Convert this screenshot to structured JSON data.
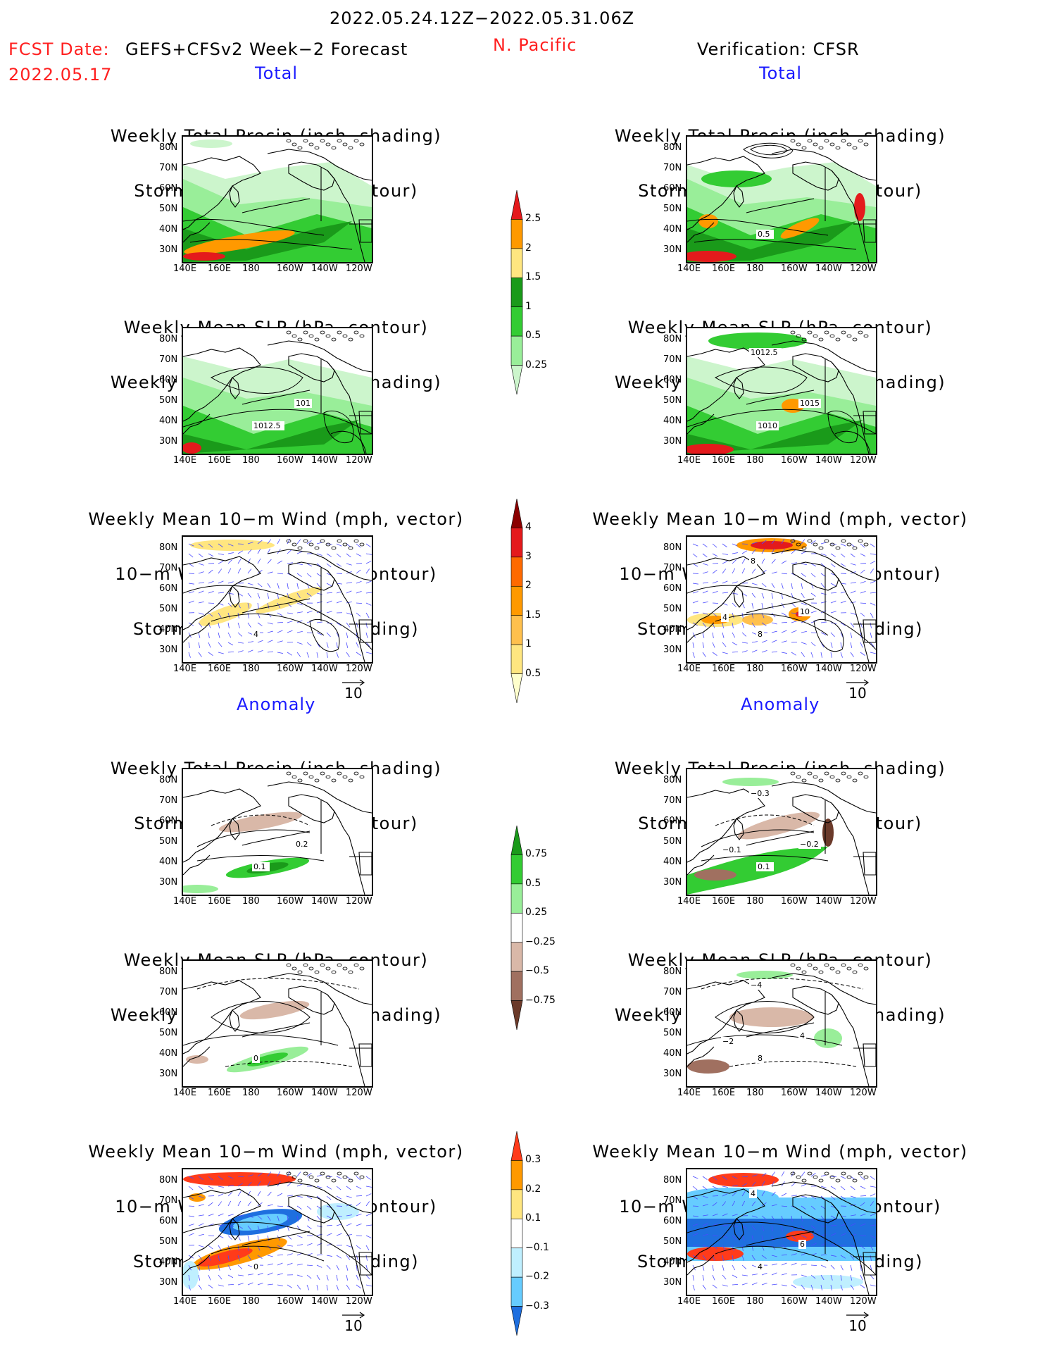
{
  "header": {
    "date_range": "2022.05.24.12Z−2022.05.31.06Z",
    "fcst_label": "FCST Date:",
    "fcst_model": "GEFS+CFSv2 Week−2 Forecast",
    "fcst_date": "2022.05.17",
    "region": "N. Pacific",
    "verification": "Verification: CFSR"
  },
  "sections": {
    "total": "Total",
    "anomaly": "Anomaly"
  },
  "titles": {
    "precip_storm": [
      "Weekly Total Precip (inch, shading)",
      "Storm Track Density (contour)"
    ],
    "slp_precip": [
      "Weekly Mean SLP (hPa, contour)",
      "Weekly Total Precip (inch, shading)"
    ],
    "wind_storm": [
      "Weekly Mean 10−m Wind (mph, vector)",
      "10−m Wind Speed (mph, contour)",
      "Storm Track Density (shading)"
    ]
  },
  "axes": {
    "lat": [
      "80N",
      "70N",
      "60N",
      "50N",
      "40N",
      "30N"
    ],
    "lon": [
      "140E",
      "160E",
      "180",
      "160W",
      "140W",
      "120W"
    ]
  },
  "vector_ref": "10",
  "colorbars": {
    "precip_total": {
      "labels": [
        "2.5",
        "2",
        "1.5",
        "1",
        "0.5",
        "0.25"
      ],
      "colors": [
        "#e41a1c",
        "#ff9900",
        "#ffe680",
        "#1a9a1a",
        "#33cc33",
        "#99ee99",
        "#ccf5cc"
      ]
    },
    "storm_total": {
      "labels": [
        "4",
        "3",
        "2",
        "1.5",
        "1",
        "0.5"
      ],
      "colors": [
        "#8b0000",
        "#e41a1c",
        "#ff6a00",
        "#ff9900",
        "#ffc04d",
        "#ffe680",
        "#ffffcc"
      ]
    },
    "precip_anom": {
      "labels": [
        "0.75",
        "0.5",
        "0.25",
        "−0.25",
        "−0.5",
        "−0.75"
      ],
      "colors": [
        "#1a9a1a",
        "#33cc33",
        "#99ee99",
        "#ffffff",
        "#d9b8a8",
        "#a07060",
        "#6b3a2a"
      ]
    },
    "storm_anom": {
      "labels": [
        "0.3",
        "0.2",
        "0.1",
        "−0.1",
        "−0.2",
        "−0.3"
      ],
      "colors": [
        "#ff3b1a",
        "#ff9900",
        "#ffe680",
        "#ffffff",
        "#bfefff",
        "#66ccff",
        "#1e6fdf"
      ]
    }
  },
  "contour_labels": {
    "fc_total_slp": [
      "1012.5",
      "101"
    ],
    "ver_total_precip": [
      "0.5"
    ],
    "ver_total_slp": [
      "1010",
      "1015",
      "1012.5"
    ],
    "fc_total_wind": [
      "4"
    ],
    "ver_total_wind": [
      "8",
      "10",
      "8",
      "4"
    ],
    "fc_anom_precip": [
      "0.1",
      "0.2"
    ],
    "ver_anom_precip": [
      "0.1",
      "−0.2",
      "−0.3",
      "−0.1"
    ],
    "fc_anom_slp": [
      "0"
    ],
    "ver_anom_slp": [
      "8",
      "4",
      "−4",
      "−2"
    ],
    "fc_anom_wind": [
      "0"
    ],
    "ver_anom_wind": [
      "4",
      "6",
      "4"
    ]
  }
}
